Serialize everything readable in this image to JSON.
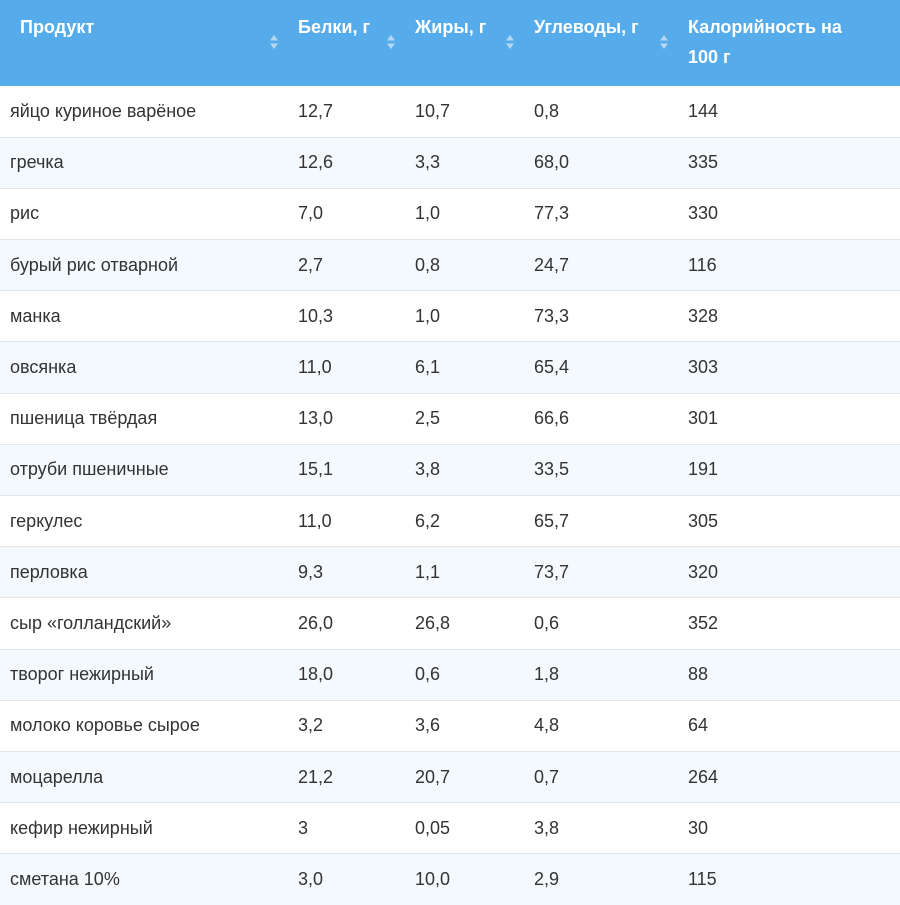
{
  "table": {
    "headers": [
      "Продукт",
      "Белки, г",
      "Жиры, г",
      "Углеводы, г",
      "Калорийность на 100 г"
    ],
    "header_bg": "#56aceb",
    "stripe_bg": "#f4f9fd",
    "sort_icon": "sort-arrows-icon",
    "rows": [
      [
        "яйцо куриное варёное",
        "12,7",
        "10,7",
        "0,8",
        "144"
      ],
      [
        "гречка",
        "12,6",
        "3,3",
        "68,0",
        "335"
      ],
      [
        "рис",
        "7,0",
        "1,0",
        "77,3",
        "330"
      ],
      [
        "бурый рис отварной",
        "2,7",
        "0,8",
        "24,7",
        "116"
      ],
      [
        "манка",
        "10,3",
        "1,0",
        "73,3",
        "328"
      ],
      [
        "овсянка",
        "11,0",
        "6,1",
        "65,4",
        "303"
      ],
      [
        "пшеница твёрдая",
        "13,0",
        "2,5",
        "66,6",
        "301"
      ],
      [
        "отруби пшеничные",
        "15,1",
        "3,8",
        "33,5",
        "191"
      ],
      [
        "геркулес",
        "11,0",
        "6,2",
        "65,7",
        "305"
      ],
      [
        "перловка",
        "9,3",
        "1,1",
        "73,7",
        "320"
      ],
      [
        "сыр «голландский»",
        "26,0",
        "26,8",
        "0,6",
        "352"
      ],
      [
        "творог нежирный",
        "18,0",
        "0,6",
        "1,8",
        "88"
      ],
      [
        "молоко коровье сырое",
        "3,2",
        "3,6",
        "4,8",
        "64"
      ],
      [
        "моцарелла",
        "21,2",
        "20,7",
        "0,7",
        "264"
      ],
      [
        "кефир нежирный",
        "3",
        "0,05",
        "3,8",
        "30"
      ],
      [
        "сметана 10%",
        "3,0",
        "10,0",
        "2,9",
        "115"
      ]
    ]
  }
}
